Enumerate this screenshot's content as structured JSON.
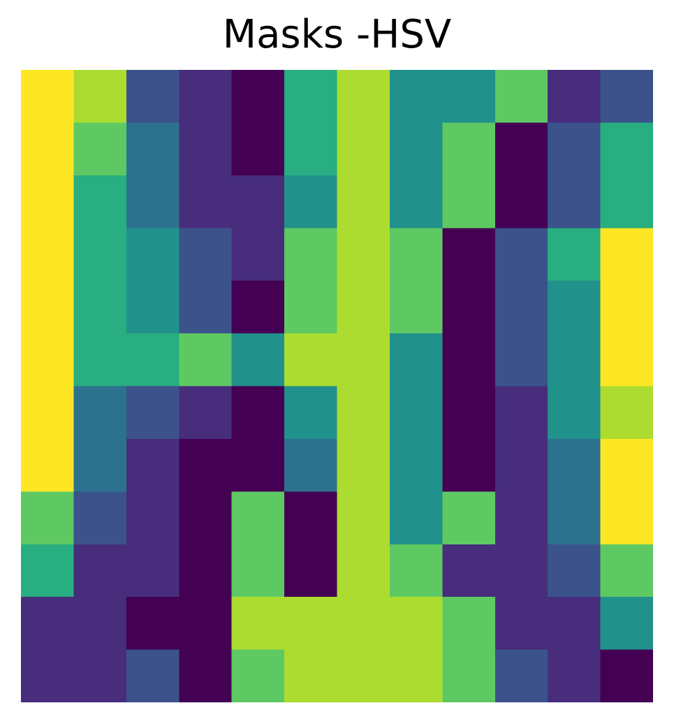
{
  "chart_data": {
    "type": "heatmap",
    "title": "Masks -HSV",
    "xlabel": "",
    "ylabel": "",
    "axes_visible": false,
    "grid": false,
    "legend": "none",
    "colormap": "viridis",
    "num_clusters": 9,
    "cluster_colors": [
      "#440154",
      "#472d7b",
      "#3b528b",
      "#2c728e",
      "#21918c",
      "#28ae80",
      "#5ec962",
      "#addc30",
      "#fde725"
    ],
    "grid_rows": 12,
    "grid_cols": 12,
    "values": [
      [
        8,
        7,
        2,
        1,
        0,
        5,
        7,
        4,
        4,
        6,
        1,
        2
      ],
      [
        8,
        6,
        3,
        1,
        0,
        5,
        7,
        4,
        6,
        0,
        2,
        5
      ],
      [
        8,
        5,
        3,
        1,
        1,
        4,
        7,
        4,
        6,
        0,
        2,
        5
      ],
      [
        8,
        5,
        4,
        2,
        1,
        6,
        7,
        6,
        0,
        2,
        5,
        8
      ],
      [
        8,
        5,
        4,
        2,
        0,
        6,
        7,
        6,
        0,
        2,
        4,
        8
      ],
      [
        8,
        5,
        5,
        6,
        4,
        7,
        7,
        4,
        0,
        2,
        4,
        8
      ],
      [
        8,
        3,
        2,
        1,
        0,
        4,
        7,
        4,
        0,
        1,
        4,
        7
      ],
      [
        8,
        3,
        1,
        0,
        0,
        3,
        7,
        4,
        0,
        1,
        3,
        8
      ],
      [
        6,
        2,
        1,
        0,
        6,
        0,
        7,
        4,
        6,
        1,
        3,
        8
      ],
      [
        5,
        1,
        1,
        0,
        6,
        0,
        7,
        6,
        1,
        1,
        2,
        6
      ],
      [
        1,
        1,
        0,
        0,
        7,
        7,
        7,
        7,
        6,
        1,
        1,
        4
      ],
      [
        1,
        1,
        2,
        0,
        6,
        7,
        7,
        7,
        6,
        2,
        1,
        0
      ]
    ]
  }
}
